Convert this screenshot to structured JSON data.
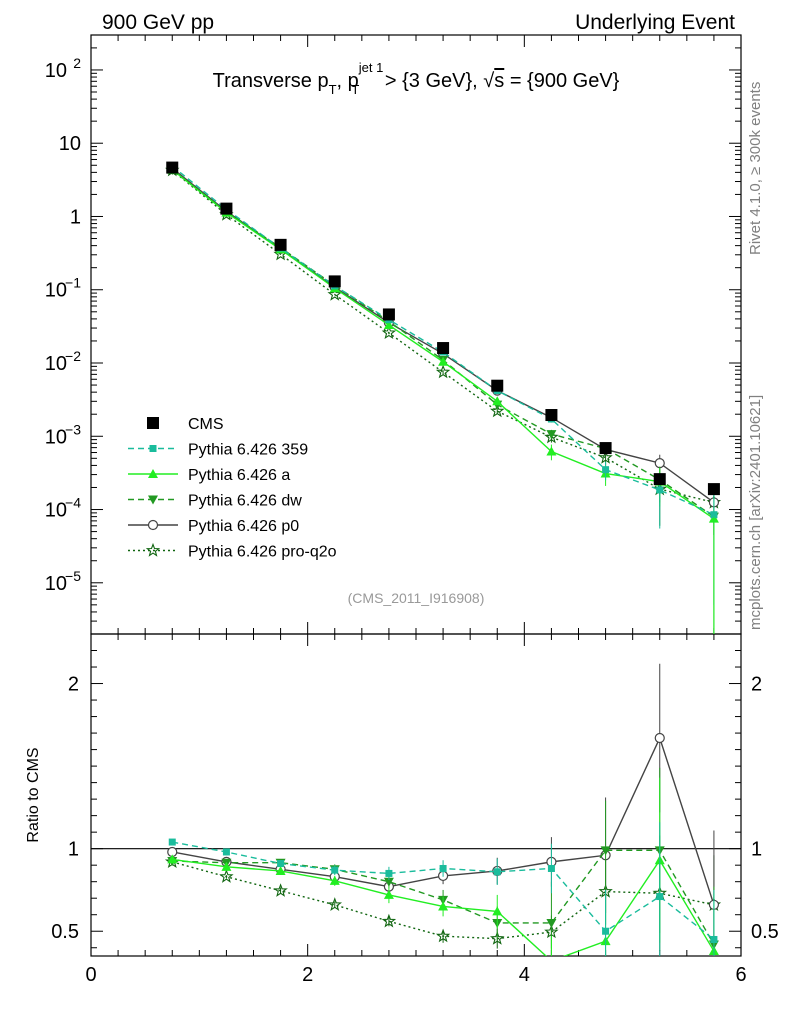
{
  "header": {
    "left_label": "900 GeV pp",
    "right_label": "Underlying Event",
    "side_label_top": "Rivet 4.1.0, ≥ 300k events",
    "side_label_bottom": "mcplots.cern.ch [arXiv:2401.10621]",
    "analysis_id": "(CMS_2011_I916908)"
  },
  "colors": {
    "data": "#000000",
    "py359": "#1abc9c",
    "pya": "#22ee22",
    "pydw": "#229922",
    "pyp0": "#444444",
    "pyq2o": "#116611"
  },
  "chart_data": [
    {
      "type": "line",
      "panel": "main",
      "title_parts": {
        "t1": "Transverse p",
        "sub1": "T",
        "t2": ", p",
        "sup2": "jet 1",
        "sub2": "T",
        "t3": " > {3 GeV}, ",
        "sqrt": "√",
        "s": "s",
        "t4": " = {900 GeV}"
      },
      "yscale": "log",
      "ylim": [
        2e-06,
        300
      ],
      "xlim": [
        0,
        6
      ],
      "yticks": [
        {
          "v": 1e-05,
          "base": "10",
          "exp": "−5"
        },
        {
          "v": 0.0001,
          "base": "10",
          "exp": "−4"
        },
        {
          "v": 0.001,
          "base": "10",
          "exp": "−3"
        },
        {
          "v": 0.01,
          "base": "10",
          "exp": "−2"
        },
        {
          "v": 0.1,
          "base": "10",
          "exp": "−1"
        },
        {
          "v": 1,
          "base": "1",
          "exp": ""
        },
        {
          "v": 10,
          "base": "10",
          "exp": ""
        },
        {
          "v": 100,
          "base": "10",
          "exp": "2"
        }
      ],
      "x": [
        0.75,
        1.25,
        1.75,
        2.25,
        2.75,
        3.25,
        3.75,
        4.25,
        4.75,
        5.25,
        5.75
      ],
      "legend": [
        "CMS",
        "Pythia 6.426 359",
        "Pythia 6.426 a",
        "Pythia 6.426 dw",
        "Pythia 6.426 p0",
        "Pythia 6.426 pro-q2o"
      ],
      "series": [
        {
          "name": "CMS",
          "key": "data",
          "marker": "square",
          "dash": "none",
          "values": [
            4.65,
            1.28,
            0.41,
            0.13,
            0.046,
            0.016,
            0.0049,
            0.00195,
            0.00069,
            0.00026,
            0.00019
          ],
          "err": [
            0.1,
            0.03,
            0.01,
            0.004,
            0.0015,
            0.0006,
            0.0002,
            0.0001,
            5e-05,
            3e-05,
            2e-05
          ]
        },
        {
          "name": "Pythia 6.426 359",
          "key": "py359",
          "marker": "smallsquare",
          "dash": "6,4",
          "values": [
            4.85,
            1.25,
            0.37,
            0.113,
            0.039,
            0.0141,
            0.0042,
            0.00172,
            0.00035,
            0.000185,
            8.5e-05
          ],
          "err": [
            0.05,
            0.02,
            0.006,
            0.002,
            0.001,
            0.0005,
            0.0002,
            0.00015,
            0.0001,
            0.00013,
            8e-05
          ]
        },
        {
          "name": "Pythia 6.426 a",
          "key": "pya",
          "marker": "triup",
          "dash": "none",
          "values": [
            4.35,
            1.13,
            0.355,
            0.105,
            0.033,
            0.0104,
            0.003,
            0.00062,
            0.00031,
            0.00024,
            7.5e-05
          ],
          "err": [
            0.05,
            0.02,
            0.006,
            0.002,
            0.001,
            0.0005,
            0.0003,
            0.00015,
            0.0001,
            0.00013,
            8e-05
          ]
        },
        {
          "name": "Pythia 6.426 dw",
          "key": "pydw",
          "marker": "tridown",
          "dash": "6,4",
          "values": [
            4.3,
            1.17,
            0.375,
            0.114,
            0.037,
            0.011,
            0.0027,
            0.00107,
            0.00068,
            0.000255,
            8e-05
          ],
          "err": [
            0.05,
            0.02,
            0.006,
            0.002,
            0.001,
            0.0005,
            0.0002,
            0.00015,
            0.0001,
            0.00013,
            8e-05
          ]
        },
        {
          "name": "Pythia 6.426 p0",
          "key": "pyp0",
          "marker": "circle",
          "dash": "none",
          "values": [
            4.55,
            1.18,
            0.36,
            0.108,
            0.0355,
            0.0134,
            0.0042,
            0.0018,
            0.00066,
            0.00043,
            0.000125
          ],
          "err": [
            0.05,
            0.02,
            0.006,
            0.002,
            0.001,
            0.0005,
            0.0003,
            0.00015,
            0.0001,
            0.00013,
            8e-05
          ]
        },
        {
          "name": "Pythia 6.426 pro-q2o",
          "key": "pyq2o",
          "marker": "star",
          "dash": "2,3",
          "values": [
            4.28,
            1.06,
            0.305,
            0.086,
            0.0257,
            0.0075,
            0.0022,
            0.00097,
            0.00051,
            0.00019,
            0.000125
          ],
          "err": [
            0.05,
            0.02,
            0.006,
            0.002,
            0.001,
            0.0005,
            0.0002,
            0.00015,
            0.0001,
            0.00013,
            8e-05
          ]
        }
      ]
    },
    {
      "type": "line",
      "panel": "ratio",
      "ylabel": "Ratio to CMS",
      "ylim": [
        0.35,
        2.3
      ],
      "xlim": [
        0,
        6
      ],
      "yticks": [
        0.5,
        1,
        2
      ],
      "ytick_labels": [
        "0.5",
        "1",
        "2"
      ],
      "xticks": [
        0,
        2,
        4,
        6
      ],
      "xtick_labels": [
        "0",
        "2",
        "4",
        "6"
      ],
      "x": [
        0.75,
        1.25,
        1.75,
        2.25,
        2.75,
        3.25,
        3.75,
        4.25,
        4.75,
        5.25,
        5.75
      ],
      "series": [
        {
          "name": "Pythia 6.426 359",
          "key": "py359",
          "marker": "smallsquare",
          "dash": "6,4",
          "values": [
            1.04,
            0.98,
            0.91,
            0.87,
            0.85,
            0.88,
            0.86,
            0.88,
            0.5,
            0.71,
            0.45
          ],
          "err": [
            0.01,
            0.02,
            0.02,
            0.03,
            0.04,
            0.05,
            0.08,
            0.15,
            0.25,
            0.45,
            0.3
          ]
        },
        {
          "name": "Pythia 6.426 a",
          "key": "pya",
          "marker": "triup",
          "dash": "none",
          "values": [
            0.935,
            0.89,
            0.865,
            0.805,
            0.72,
            0.65,
            0.62,
            0.32,
            0.44,
            0.93,
            0.38
          ],
          "err": [
            0.01,
            0.02,
            0.02,
            0.03,
            0.05,
            0.06,
            0.1,
            0.15,
            0.25,
            0.5,
            0.35
          ]
        },
        {
          "name": "Pythia 6.426 dw",
          "key": "pydw",
          "marker": "tridown",
          "dash": "6,4",
          "values": [
            0.925,
            0.915,
            0.915,
            0.875,
            0.8,
            0.69,
            0.55,
            0.55,
            0.99,
            0.99,
            0.42
          ],
          "err": [
            0.01,
            0.02,
            0.02,
            0.03,
            0.04,
            0.06,
            0.1,
            0.25,
            0.3,
            0.5,
            0.35
          ]
        },
        {
          "name": "Pythia 6.426 p0",
          "key": "pyp0",
          "marker": "circle",
          "dash": "none",
          "values": [
            0.98,
            0.92,
            0.875,
            0.83,
            0.77,
            0.835,
            0.865,
            0.92,
            0.96,
            1.67,
            0.66
          ],
          "err": [
            0.01,
            0.02,
            0.02,
            0.03,
            0.04,
            0.05,
            0.08,
            0.15,
            0.35,
            0.45,
            0.45
          ]
        },
        {
          "name": "Pythia 6.426 pro-q2o",
          "key": "pyq2o",
          "marker": "star",
          "dash": "2,3",
          "values": [
            0.92,
            0.83,
            0.745,
            0.66,
            0.56,
            0.47,
            0.455,
            0.495,
            0.74,
            0.73,
            0.66
          ],
          "err": [
            0.01,
            0.01,
            0.02,
            0.02,
            0.03,
            0.04,
            0.06,
            0.1,
            0.2,
            0.35,
            0.3
          ]
        }
      ]
    }
  ]
}
